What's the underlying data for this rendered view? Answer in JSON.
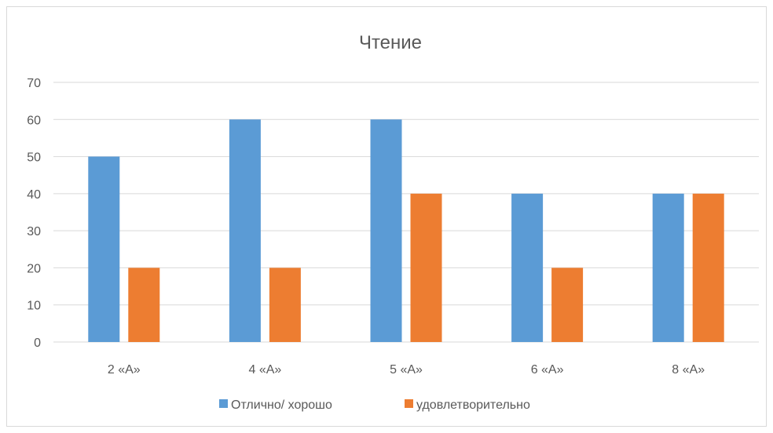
{
  "chart_data": {
    "type": "bar",
    "title": "Чтение",
    "categories": [
      "2 «А»",
      "4 «А»",
      "5 «А»",
      "6 «А»",
      "8 «А»"
    ],
    "series": [
      {
        "name": "Отлично/ хорошо",
        "values": [
          50,
          60,
          60,
          40,
          40
        ],
        "color": "#5b9bd5"
      },
      {
        "name": "удовлетворительно",
        "values": [
          20,
          20,
          40,
          20,
          40
        ],
        "color": "#ed7d31"
      }
    ],
    "yticks": [
      0,
      10,
      20,
      30,
      40,
      50,
      60,
      70
    ],
    "ylim": [
      0,
      70
    ],
    "grid": true,
    "legend_position": "bottom"
  }
}
